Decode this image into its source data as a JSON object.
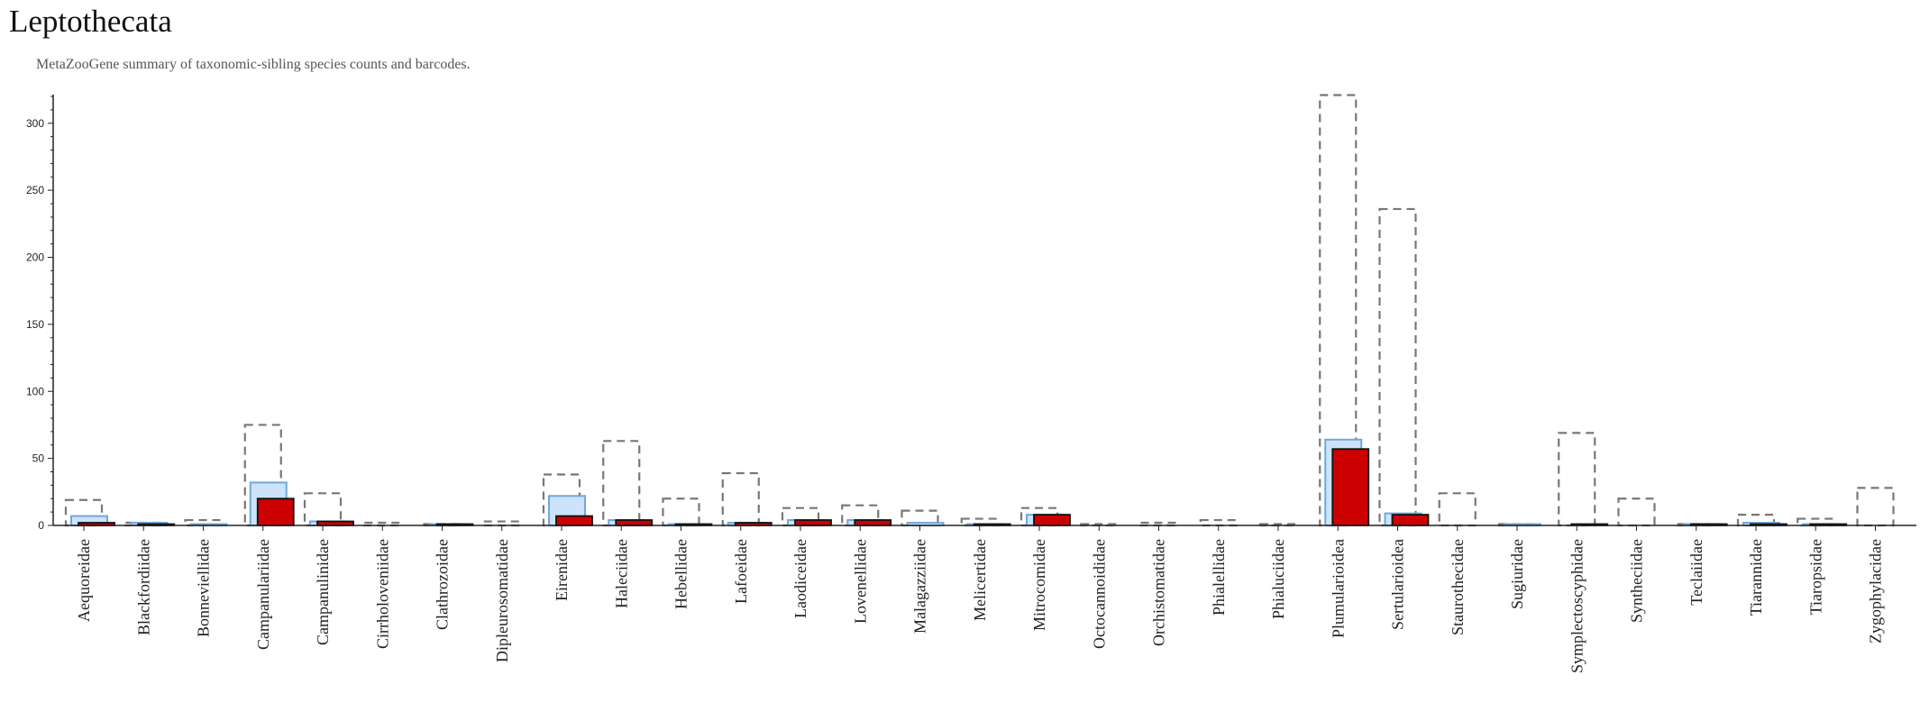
{
  "title": "Leptothecata",
  "subtitle": "MetaZooGene summary of taxonomic-sibling species counts and barcodes.",
  "colors": {
    "total_outline": "#777777",
    "species_fill": "#cce3fb",
    "species_stroke": "#6fa8dc",
    "barcode_fill": "#cc0000",
    "barcode_stroke": "#111111",
    "axis": "#222222"
  },
  "chart_data": {
    "type": "bar",
    "title": "Leptothecata",
    "ylim": [
      0,
      320
    ],
    "yticks": [
      0,
      50,
      100,
      150,
      200,
      250,
      300
    ],
    "grid": false,
    "categories": [
      "Aequoreidae",
      "Blackfordiidae",
      "Bonneviellidae",
      "Campanulariidae",
      "Campanulinidae",
      "Cirrholoveniidae",
      "Clathrozoidae",
      "Dipleurosomatidae",
      "Eirenidae",
      "Haleciidae",
      "Hebellidae",
      "Lafoeidae",
      "Laodiceidae",
      "Lovenellidae",
      "Malagazziidae",
      "Melicertidae",
      "Mitrocomidae",
      "Octocannoididae",
      "Orchistomatidae",
      "Phialellidae",
      "Phialuciidae",
      "Plumularioidea",
      "Sertularioidea",
      "Staurothecidae",
      "Sugiuridae",
      "Symplectoscyphidae",
      "Syntheciidae",
      "Teclaiidae",
      "Tiarannidae",
      "Tiaropsidae",
      "Zygophylacidae"
    ],
    "series": [
      {
        "values": [
          19,
          2,
          4,
          75,
          24,
          2,
          1,
          3,
          38,
          63,
          20,
          39,
          13,
          15,
          11,
          5,
          13,
          1,
          2,
          4,
          1,
          321,
          236,
          24,
          1,
          69,
          20,
          1,
          8,
          5,
          28
        ]
      },
      {
        "values": [
          7,
          2,
          1,
          32,
          3,
          0,
          1,
          0,
          22,
          4,
          1,
          2,
          4,
          4,
          2,
          1,
          8,
          0,
          0,
          0,
          0,
          64,
          9,
          0,
          1,
          0,
          0,
          1,
          2,
          1,
          0
        ]
      },
      {
        "values": [
          2,
          1,
          0,
          20,
          3,
          0,
          1,
          0,
          7,
          4,
          1,
          2,
          4,
          4,
          0,
          1,
          8,
          0,
          0,
          0,
          0,
          57,
          8,
          0,
          0,
          1,
          0,
          1,
          1,
          1,
          0
        ]
      }
    ]
  }
}
